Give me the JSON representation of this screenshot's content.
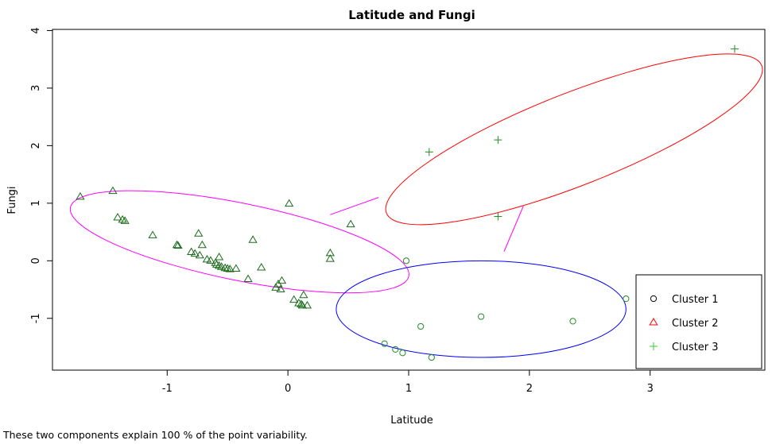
{
  "chart_data": {
    "type": "scatter",
    "title": "Latitude and Fungi",
    "xlabel": "Latitude",
    "ylabel": "Fungi",
    "note": "These two components explain 100 % of the point variability.",
    "xlim": [
      -1.95,
      3.95
    ],
    "ylim": [
      -1.9,
      4.02
    ],
    "xticks": [
      -1,
      0,
      1,
      2,
      3
    ],
    "yticks": [
      -1,
      0,
      1,
      2,
      3,
      4
    ],
    "legend_position": "bottom-right",
    "series": [
      {
        "name": "Cluster 1",
        "marker": "circle",
        "legend_color": "#000000",
        "point_color": "#228B22",
        "points": [
          [
            0.98,
            0.0
          ],
          [
            2.8,
            -0.66
          ],
          [
            1.6,
            -0.97
          ],
          [
            2.36,
            -1.05
          ],
          [
            1.1,
            -1.14
          ],
          [
            0.8,
            -1.44
          ],
          [
            0.89,
            -1.54
          ],
          [
            0.95,
            -1.6
          ],
          [
            1.19,
            -1.68
          ]
        ]
      },
      {
        "name": "Cluster 2",
        "marker": "triangle",
        "legend_color": "#ff0000",
        "point_color": "#1a6b1a",
        "points": [
          [
            -1.72,
            1.11
          ],
          [
            -1.45,
            1.21
          ],
          [
            -1.41,
            0.75
          ],
          [
            -1.37,
            0.71
          ],
          [
            -1.35,
            0.69
          ],
          [
            -1.12,
            0.44
          ],
          [
            -0.92,
            0.27
          ],
          [
            -0.91,
            0.26
          ],
          [
            -0.74,
            0.47
          ],
          [
            -0.71,
            0.27
          ],
          [
            -0.8,
            0.15
          ],
          [
            -0.77,
            0.12
          ],
          [
            -0.73,
            0.09
          ],
          [
            -0.67,
            0.02
          ],
          [
            -0.64,
            0.0
          ],
          [
            -0.6,
            -0.04
          ],
          [
            -0.59,
            -0.07
          ],
          [
            -0.57,
            -0.09
          ],
          [
            -0.55,
            -0.11
          ],
          [
            -0.52,
            -0.13
          ],
          [
            -0.5,
            -0.14
          ],
          [
            -0.48,
            -0.15
          ],
          [
            -0.57,
            0.06
          ],
          [
            -0.43,
            -0.14
          ],
          [
            -0.33,
            -0.32
          ],
          [
            -0.29,
            0.36
          ],
          [
            -0.22,
            -0.12
          ],
          [
            -0.1,
            -0.47
          ],
          [
            -0.08,
            -0.41
          ],
          [
            -0.06,
            -0.5
          ],
          [
            -0.05,
            -0.35
          ],
          [
            0.01,
            0.99
          ],
          [
            0.05,
            -0.68
          ],
          [
            0.09,
            -0.74
          ],
          [
            0.11,
            -0.76
          ],
          [
            0.12,
            -0.78
          ],
          [
            0.13,
            -0.6
          ],
          [
            0.16,
            -0.78
          ],
          [
            0.35,
            0.13
          ],
          [
            0.35,
            0.03
          ],
          [
            0.52,
            0.63
          ]
        ]
      },
      {
        "name": "Cluster 3",
        "marker": "plus",
        "legend_color": "#32cd32",
        "point_color": "#228B22",
        "points": [
          [
            1.17,
            1.89
          ],
          [
            1.74,
            2.1
          ],
          [
            1.74,
            0.77
          ],
          [
            3.7,
            3.68
          ]
        ]
      }
    ],
    "ellipses": [
      {
        "cluster": "Cluster 2",
        "color": "#ff00ff",
        "center": [
          -0.4,
          0.33
        ],
        "rx": 1.43,
        "ry": 0.67,
        "angle_deg": -11.5
      },
      {
        "cluster": "Cluster 3",
        "color": "#ff0000",
        "center": [
          2.37,
          2.11
        ],
        "rx": 1.67,
        "ry": 0.8,
        "angle_deg": 21.5
      },
      {
        "cluster": "Cluster 1",
        "color": "#0000ff",
        "center": [
          1.6,
          -0.84
        ],
        "rx": 1.2,
        "ry": 0.84,
        "angle_deg": 0
      }
    ],
    "connectors": [
      {
        "color": "#ff00ff",
        "from": [
          0.35,
          0.8
        ],
        "to": [
          0.75,
          1.1
        ]
      },
      {
        "color": "#ff00ff",
        "from": [
          1.79,
          0.16
        ],
        "to": [
          1.95,
          0.95
        ]
      }
    ]
  }
}
